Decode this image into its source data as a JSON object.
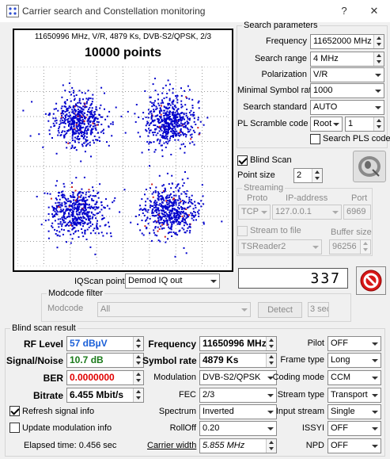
{
  "window": {
    "title": "Carrier search and Constellation monitoring",
    "help_label": "?",
    "close_label": "✕"
  },
  "plot": {
    "header": "11650996 MHz, V/R, 4879 Ks, DVB-S2/QPSK, 2/3",
    "points_label": "10000 points"
  },
  "search_params": {
    "legend": "Search parameters",
    "frequency_label": "Frequency",
    "frequency_value": "11652000 MHz",
    "search_range_label": "Search range",
    "search_range_value": "4 MHz",
    "polarization_label": "Polarization",
    "polarization_value": "V/R",
    "min_symbol_rate_label": "Minimal Symbol rate",
    "min_symbol_rate_value": "1000",
    "search_standard_label": "Search standard",
    "search_standard_value": "AUTO",
    "pl_scramble_label": "PL Scramble code",
    "pl_scramble_mode": "Root",
    "pl_scramble_value": "1",
    "search_pls_label": "Search PLS code"
  },
  "blind_scan": {
    "label": "Blind Scan",
    "point_size_label": "Point size",
    "point_size_value": "2"
  },
  "streaming": {
    "legend": "Streaming",
    "proto_label": "Proto",
    "ip_label": "IP-address",
    "port_label": "Port",
    "proto_value": "TCP",
    "ip_value": "127.0.0.1",
    "port_value": "6969",
    "stream_to_file_label": "Stream to file",
    "buffer_size_label": "Buffer size",
    "reader_value": "TSReader2",
    "buffer_value": "96256"
  },
  "iqscan": {
    "label": "IQScan point",
    "value": "Demod IQ out",
    "counter": "337"
  },
  "modcode_filter": {
    "legend": "Modcode filter",
    "modcode_label": "Modcode",
    "modcode_value": "All",
    "detect_label": "Detect",
    "sec_value": "3 sec"
  },
  "result": {
    "legend": "Blind scan result",
    "rf_level_label": "RF Level",
    "rf_level_value": "57 dBµV",
    "sn_label": "Signal/Noise",
    "sn_value": "10.7 dB",
    "ber_label": "BER",
    "ber_value": "0.0000000",
    "bitrate_label": "Bitrate",
    "bitrate_value": "6.455 Mbit/s",
    "refresh_label": "Refresh signal info",
    "update_mod_label": "Update modulation info",
    "elapsed_label": "Elapsed time: 0.456 sec",
    "frequency_label": "Frequency",
    "frequency_value": "11650996 MHz",
    "symbol_rate_label": "Symbol rate",
    "symbol_rate_value": "4879 Ks",
    "modulation_label": "Modulation",
    "modulation_value": "DVB-S2/QPSK",
    "fec_label": "FEC",
    "fec_value": "2/3",
    "spectrum_label": "Spectrum",
    "spectrum_value": "Inverted",
    "rolloff_label": "RollOff",
    "rolloff_value": "0.20",
    "carrier_width_label": "Carrier width",
    "carrier_width_value": "5.855 MHz",
    "pilot_label": "Pilot",
    "pilot_value": "OFF",
    "frame_type_label": "Frame type",
    "frame_type_value": "Long",
    "coding_mode_label": "Coding mode",
    "coding_mode_value": "CCM",
    "stream_type_label": "Stream type",
    "stream_type_value": "Transport",
    "input_stream_label": "Input stream",
    "input_stream_value": "Single",
    "issyi_label": "ISSYI",
    "issyi_value": "OFF",
    "npd_label": "NPD",
    "npd_value": "OFF"
  },
  "colors": {
    "points": "#0000cc",
    "rf_level": "#1a5fd8",
    "sn": "#1a7a1a",
    "ber": "#e00000",
    "stop": "#d81818"
  }
}
